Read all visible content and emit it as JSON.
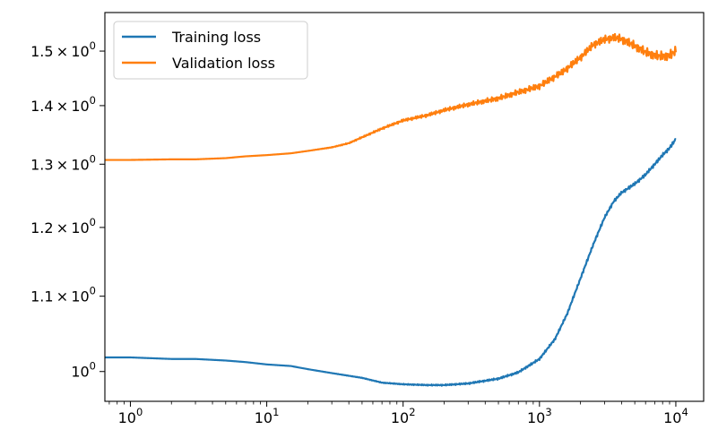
{
  "chart_data": {
    "type": "line",
    "xscale": "log",
    "yscale": "log",
    "xlim": [
      0.65,
      16000
    ],
    "ylim": [
      0.963,
      1.575
    ],
    "legend_position": "top-left",
    "grid": false,
    "x_ticks": [
      {
        "value": 1,
        "base": "10",
        "exp": "0"
      },
      {
        "value": 10,
        "base": "10",
        "exp": "1"
      },
      {
        "value": 100,
        "base": "10",
        "exp": "2"
      },
      {
        "value": 1000,
        "base": "10",
        "exp": "3"
      },
      {
        "value": 10000,
        "base": "10",
        "exp": "4"
      }
    ],
    "y_ticks": [
      {
        "value": 1.0,
        "mant": "",
        "base": "10",
        "exp": "0"
      },
      {
        "value": 1.1,
        "mant": "1.1",
        "base": "10",
        "exp": "0"
      },
      {
        "value": 1.2,
        "mant": "1.2",
        "base": "10",
        "exp": "0"
      },
      {
        "value": 1.3,
        "mant": "1.3",
        "base": "10",
        "exp": "0"
      },
      {
        "value": 1.4,
        "mant": "1.4",
        "base": "10",
        "exp": "0"
      },
      {
        "value": 1.5,
        "mant": "1.5",
        "base": "10",
        "exp": "0"
      }
    ],
    "series": [
      {
        "name": "Training loss",
        "color": "#1f77b4",
        "x": [
          0.65,
          1,
          2,
          3,
          5,
          7,
          10,
          15,
          20,
          30,
          50,
          70,
          100,
          150,
          200,
          300,
          500,
          700,
          1000,
          1300,
          1600,
          2000,
          2500,
          3000,
          3500,
          4000,
          5000,
          6000,
          7000,
          8000,
          9000,
          10000
        ],
        "y": [
          1.018,
          1.018,
          1.016,
          1.016,
          1.014,
          1.012,
          1.009,
          1.007,
          1.003,
          0.998,
          0.992,
          0.986,
          0.984,
          0.983,
          0.983,
          0.985,
          0.991,
          0.999,
          1.016,
          1.042,
          1.076,
          1.125,
          1.176,
          1.215,
          1.24,
          1.254,
          1.268,
          1.283,
          1.3,
          1.315,
          1.327,
          1.342
        ]
      },
      {
        "name": "Validation loss",
        "color": "#ff7f0e",
        "x": [
          0.65,
          1,
          2,
          3,
          5,
          7,
          10,
          15,
          20,
          30,
          40,
          50,
          70,
          100,
          150,
          200,
          300,
          500,
          700,
          1000,
          1500,
          2000,
          2500,
          3000,
          3500,
          4000,
          5000,
          6000,
          7000,
          8000,
          9000,
          10000
        ],
        "y": [
          1.307,
          1.307,
          1.308,
          1.308,
          1.31,
          1.313,
          1.315,
          1.318,
          1.322,
          1.328,
          1.335,
          1.345,
          1.36,
          1.374,
          1.383,
          1.392,
          1.402,
          1.413,
          1.424,
          1.435,
          1.462,
          1.488,
          1.513,
          1.522,
          1.526,
          1.523,
          1.51,
          1.498,
          1.492,
          1.49,
          1.492,
          1.5
        ]
      }
    ]
  }
}
